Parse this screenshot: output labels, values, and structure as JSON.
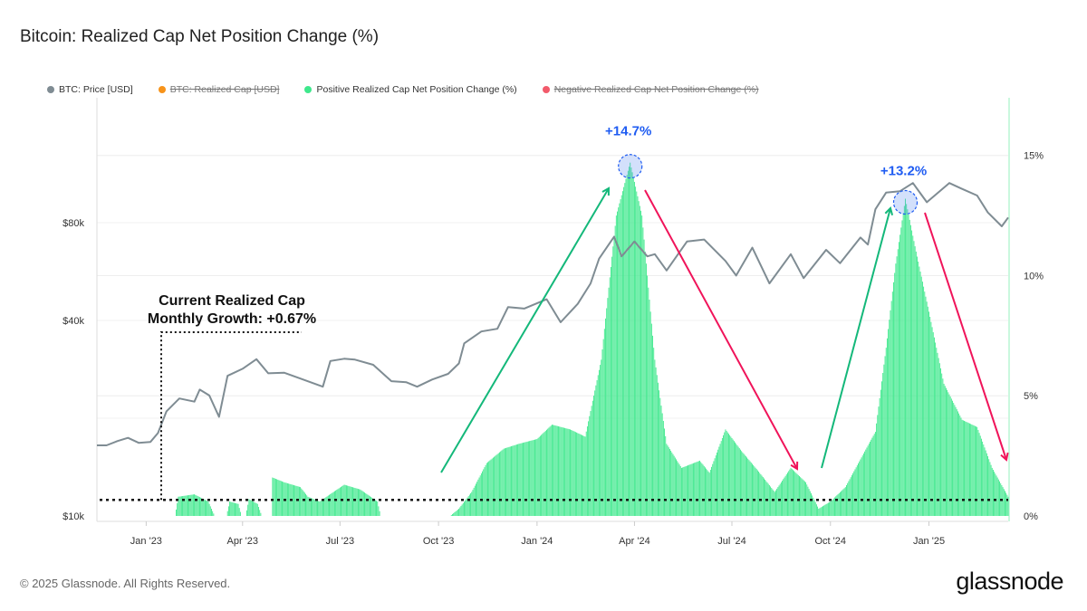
{
  "title": "Bitcoin: Realized Cap Net Position Change (%)",
  "footer": "© 2025 Glassnode. All Rights Reserved.",
  "logo": "glassnode",
  "legend": [
    {
      "label": "BTC: Price [USD]",
      "color": "#7f8c93",
      "active": true
    },
    {
      "label": "BTC: Realized Cap [USD]",
      "color": "#f7931a",
      "active": false
    },
    {
      "label": "Positive Realized Cap Net Position Change (%)",
      "color": "#3ee88c",
      "active": true
    },
    {
      "label": "Negative Realized Cap Net Position Change (%)",
      "color": "#f25a6b",
      "active": false
    }
  ],
  "chart_data": {
    "type": "bar+line",
    "xlim": [
      "2022-11-16",
      "2025-03-16"
    ],
    "x_ticks": [
      {
        "date": "2023-01-01",
        "label": "Jan '23"
      },
      {
        "date": "2023-04-01",
        "label": "Apr '23"
      },
      {
        "date": "2023-07-01",
        "label": "Jul '23"
      },
      {
        "date": "2023-10-01",
        "label": "Oct '23"
      },
      {
        "date": "2024-01-01",
        "label": "Jan '24"
      },
      {
        "date": "2024-04-01",
        "label": "Apr '24"
      },
      {
        "date": "2024-07-01",
        "label": "Jul '24"
      },
      {
        "date": "2024-10-01",
        "label": "Oct '24"
      },
      {
        "date": "2025-01-01",
        "label": "Jan '25"
      }
    ],
    "left_axis": {
      "scale": "log",
      "ylim": [
        10000,
        194000
      ],
      "ticks": [
        {
          "value": 10000,
          "label": "$10k"
        },
        {
          "value": 40000,
          "label": "$40k"
        },
        {
          "value": 80000,
          "label": "$80k"
        }
      ]
    },
    "right_axis": {
      "scale": "linear",
      "ylim": [
        0,
        17.4
      ],
      "ticks": [
        {
          "value": 0,
          "label": "0%"
        },
        {
          "value": 5,
          "label": "5%"
        },
        {
          "value": 10,
          "label": "10%"
        },
        {
          "value": 15,
          "label": "15%"
        }
      ]
    },
    "grid": true,
    "legend_position": "top-left",
    "series": [
      {
        "name": "BTC: Price [USD]",
        "type": "line",
        "axis": "left",
        "color": "#7f8c93",
        "points": [
          [
            "2022-11-16",
            16500
          ],
          [
            "2022-11-25",
            16500
          ],
          [
            "2022-12-05",
            17000
          ],
          [
            "2022-12-15",
            17400
          ],
          [
            "2022-12-25",
            16800
          ],
          [
            "2023-01-05",
            16900
          ],
          [
            "2023-01-12",
            18000
          ],
          [
            "2023-01-20",
            21000
          ],
          [
            "2023-02-01",
            23000
          ],
          [
            "2023-02-15",
            22500
          ],
          [
            "2023-02-20",
            24500
          ],
          [
            "2023-03-01",
            23500
          ],
          [
            "2023-03-10",
            20200
          ],
          [
            "2023-03-18",
            27000
          ],
          [
            "2023-04-01",
            28400
          ],
          [
            "2023-04-14",
            30400
          ],
          [
            "2023-04-25",
            27500
          ],
          [
            "2023-05-10",
            27600
          ],
          [
            "2023-05-25",
            26500
          ],
          [
            "2023-06-15",
            25000
          ],
          [
            "2023-06-22",
            30000
          ],
          [
            "2023-07-05",
            30500
          ],
          [
            "2023-07-15",
            30300
          ],
          [
            "2023-08-01",
            29200
          ],
          [
            "2023-08-18",
            26000
          ],
          [
            "2023-09-01",
            25800
          ],
          [
            "2023-09-11",
            25000
          ],
          [
            "2023-09-25",
            26300
          ],
          [
            "2023-10-10",
            27400
          ],
          [
            "2023-10-20",
            29500
          ],
          [
            "2023-10-25",
            34000
          ],
          [
            "2023-11-10",
            37000
          ],
          [
            "2023-11-25",
            37700
          ],
          [
            "2023-12-05",
            44000
          ],
          [
            "2023-12-20",
            43500
          ],
          [
            "2024-01-10",
            46500
          ],
          [
            "2024-01-23",
            39500
          ],
          [
            "2024-02-08",
            45000
          ],
          [
            "2024-02-20",
            52000
          ],
          [
            "2024-02-28",
            62000
          ],
          [
            "2024-03-13",
            72500
          ],
          [
            "2024-03-20",
            63000
          ],
          [
            "2024-04-01",
            70000
          ],
          [
            "2024-04-13",
            63000
          ],
          [
            "2024-04-20",
            64000
          ],
          [
            "2024-05-01",
            57000
          ],
          [
            "2024-05-20",
            70000
          ],
          [
            "2024-06-05",
            71000
          ],
          [
            "2024-06-25",
            61000
          ],
          [
            "2024-07-05",
            55000
          ],
          [
            "2024-07-20",
            67000
          ],
          [
            "2024-08-05",
            52000
          ],
          [
            "2024-08-25",
            64000
          ],
          [
            "2024-09-06",
            54000
          ],
          [
            "2024-09-27",
            66000
          ],
          [
            "2024-10-10",
            60000
          ],
          [
            "2024-10-29",
            72000
          ],
          [
            "2024-11-05",
            68500
          ],
          [
            "2024-11-12",
            88000
          ],
          [
            "2024-11-22",
            99000
          ],
          [
            "2024-12-05",
            100000
          ],
          [
            "2024-12-17",
            106000
          ],
          [
            "2024-12-30",
            92500
          ],
          [
            "2025-01-20",
            106000
          ],
          [
            "2025-01-31",
            102000
          ],
          [
            "2025-02-15",
            97000
          ],
          [
            "2025-02-25",
            86000
          ],
          [
            "2025-03-10",
            78000
          ],
          [
            "2025-03-16",
            83000
          ]
        ]
      },
      {
        "name": "Positive Realized Cap Net Position Change (%)",
        "type": "bar",
        "axis": "right",
        "color": "#3ee88c",
        "points": [
          [
            "2022-11-16",
            0
          ],
          [
            "2023-01-28",
            0
          ],
          [
            "2023-01-31",
            0.8
          ],
          [
            "2023-02-15",
            0.9
          ],
          [
            "2023-02-28",
            0.6
          ],
          [
            "2023-03-06",
            0
          ],
          [
            "2023-03-17",
            0
          ],
          [
            "2023-03-20",
            0.6
          ],
          [
            "2023-03-28",
            0.5
          ],
          [
            "2023-03-31",
            0
          ],
          [
            "2023-04-04",
            0
          ],
          [
            "2023-04-07",
            0.7
          ],
          [
            "2023-04-15",
            0.5
          ],
          [
            "2023-04-19",
            0
          ],
          [
            "2023-04-28",
            0
          ],
          [
            "2023-04-29",
            1.6
          ],
          [
            "2023-05-10",
            1.4
          ],
          [
            "2023-05-25",
            1.2
          ],
          [
            "2023-06-01",
            0.8
          ],
          [
            "2023-06-12",
            0.6
          ],
          [
            "2023-06-25",
            1.0
          ],
          [
            "2023-07-05",
            1.3
          ],
          [
            "2023-07-20",
            1.1
          ],
          [
            "2023-08-05",
            0.6
          ],
          [
            "2023-08-08",
            0
          ],
          [
            "2023-10-12",
            0
          ],
          [
            "2023-10-20",
            0.3
          ],
          [
            "2023-11-01",
            1.0
          ],
          [
            "2023-11-15",
            2.2
          ],
          [
            "2023-12-01",
            2.8
          ],
          [
            "2023-12-15",
            3.0
          ],
          [
            "2024-01-01",
            3.2
          ],
          [
            "2024-01-15",
            3.8
          ],
          [
            "2024-02-01",
            3.6
          ],
          [
            "2024-02-15",
            3.3
          ],
          [
            "2024-03-01",
            6.5
          ],
          [
            "2024-03-15",
            12.5
          ],
          [
            "2024-03-28",
            14.7
          ],
          [
            "2024-04-08",
            12.5
          ],
          [
            "2024-04-20",
            6.5
          ],
          [
            "2024-05-01",
            3.0
          ],
          [
            "2024-05-15",
            2.0
          ],
          [
            "2024-06-01",
            2.3
          ],
          [
            "2024-06-10",
            1.8
          ],
          [
            "2024-06-25",
            3.6
          ],
          [
            "2024-07-10",
            2.7
          ],
          [
            "2024-07-25",
            1.9
          ],
          [
            "2024-08-10",
            1.0
          ],
          [
            "2024-08-25",
            2.0
          ],
          [
            "2024-09-08",
            1.4
          ],
          [
            "2024-09-20",
            0.3
          ],
          [
            "2024-10-01",
            0.6
          ],
          [
            "2024-10-15",
            1.2
          ],
          [
            "2024-11-01",
            2.6
          ],
          [
            "2024-11-12",
            3.5
          ],
          [
            "2024-11-22",
            7.0
          ],
          [
            "2024-12-01",
            10.5
          ],
          [
            "2024-12-10",
            13.2
          ],
          [
            "2024-12-20",
            11.0
          ],
          [
            "2025-01-01",
            8.5
          ],
          [
            "2025-01-15",
            5.5
          ],
          [
            "2025-02-01",
            4.0
          ],
          [
            "2025-02-15",
            3.7
          ],
          [
            "2025-03-01",
            2.0
          ],
          [
            "2025-03-16",
            0.8
          ]
        ]
      }
    ],
    "annotations": {
      "peak1": {
        "label": "+14.7%",
        "date": "2024-03-28",
        "value": 14.7,
        "color": "#1f5cf2"
      },
      "peak2": {
        "label": "+13.2%",
        "date": "2024-12-10",
        "value": 13.2,
        "color": "#1f5cf2"
      },
      "current_growth_line": {
        "value": 0.67,
        "label_line1": "Current Realized Cap",
        "label_line2": "Monthly Growth: +0.67%"
      },
      "up_arrow_color": "#14b87a",
      "down_arrow_color": "#f0145a"
    }
  }
}
